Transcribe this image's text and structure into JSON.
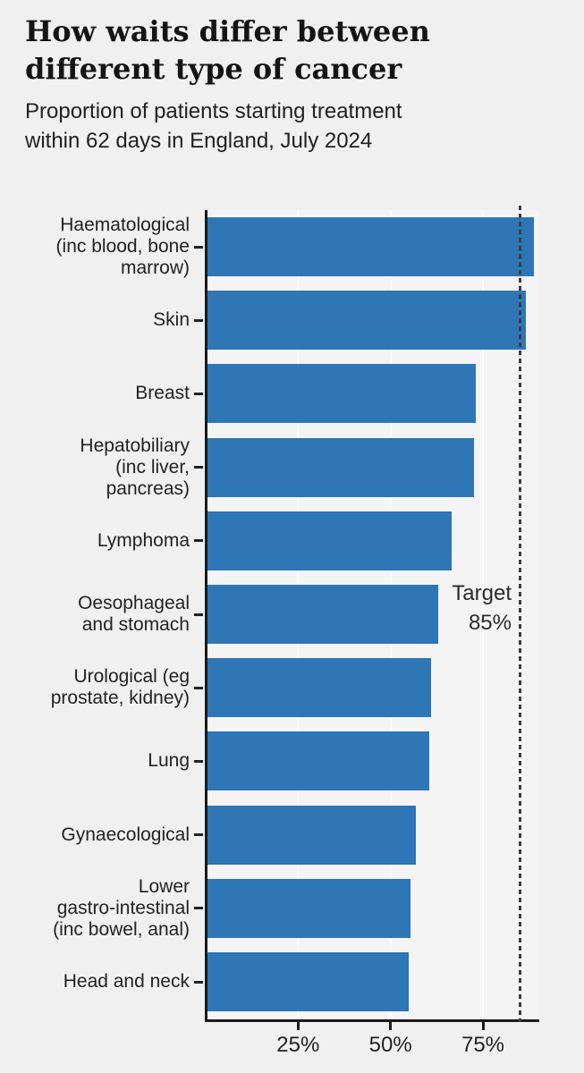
{
  "header": {
    "title": "How waits differ between different type of cancer",
    "title_lines": [
      "How waits differ between",
      "different type of cancer"
    ],
    "subtitle": "Proportion of patients starting treatment within 62 days in England, July 2024",
    "subtitle_lines": [
      "Proportion of patients starting treatment",
      "within 62 days in England, July 2024"
    ]
  },
  "chart_data": {
    "type": "bar",
    "orientation": "horizontal",
    "title": "How waits differ between different type of cancer",
    "subtitle": "Proportion of patients starting treatment within 62 days in England, July 2024",
    "categories": [
      "Haematological (inc blood, bone marrow)",
      "Skin",
      "Breast",
      "Hepatobiliary (inc liver, pancreas)",
      "Lymphoma",
      "Oesophageal and stomach",
      "Urological (eg prostate, kidney)",
      "Lung",
      "Gynaecological",
      "Lower gastro-intestinal (inc bowel, anal)",
      "Head and neck"
    ],
    "label_lines": [
      [
        "Haematological",
        "(inc blood, bone",
        "marrow)"
      ],
      [
        "Skin"
      ],
      [
        "Breast"
      ],
      [
        "Hepatobiliary",
        "(inc liver,",
        "pancreas)"
      ],
      [
        "Lymphoma"
      ],
      [
        "Oesophageal",
        "and stomach"
      ],
      [
        "Urological (eg",
        "prostate, kidney)"
      ],
      [
        "Lung"
      ],
      [
        "Gynaecological"
      ],
      [
        "Lower",
        "gastro-intestinal",
        "(inc bowel, anal)"
      ],
      [
        "Head and neck"
      ]
    ],
    "values": [
      88,
      86,
      72.5,
      72,
      66,
      62.5,
      60.5,
      60,
      56.5,
      55,
      54.5
    ],
    "unit": "%",
    "xlabel": "",
    "ylabel": "",
    "xlim": [
      0,
      90
    ],
    "x_ticks": [
      {
        "value": 25,
        "label": "25%"
      },
      {
        "value": 50,
        "label": "50%"
      },
      {
        "value": 75,
        "label": "75%"
      }
    ],
    "target": {
      "value": 85,
      "lines": [
        "Target",
        "85%"
      ]
    },
    "bar_color": "#2e76b5",
    "grid": true,
    "legend_position": "none"
  }
}
